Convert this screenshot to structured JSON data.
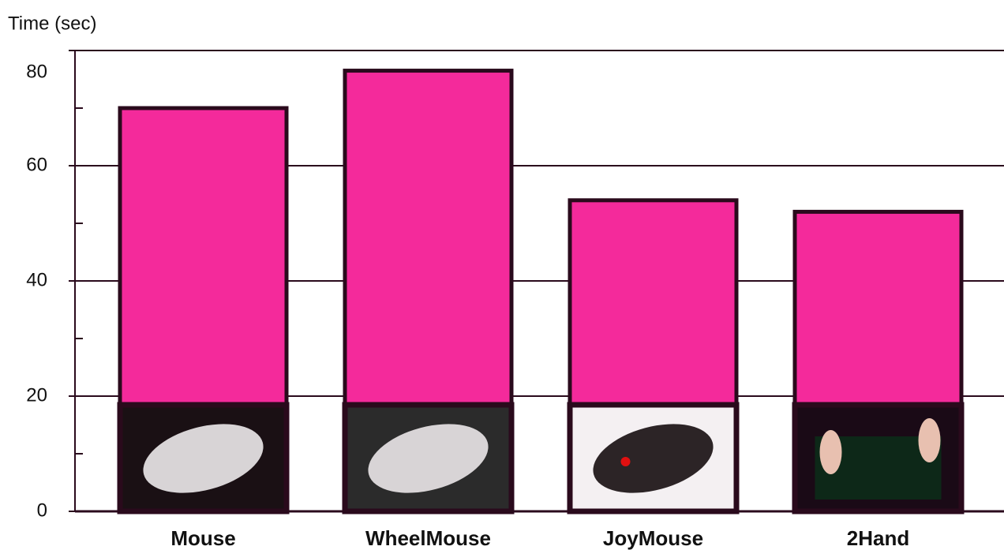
{
  "chart_data": {
    "type": "bar",
    "y_axis_label": "Time (sec)",
    "categories": [
      "Mouse",
      "WheelMouse",
      "JoyMouse",
      "2Hand"
    ],
    "values": [
      70,
      76.5,
      54,
      52
    ],
    "color": "#f42a9b",
    "ylim": [
      0,
      80
    ],
    "yticks": [
      0,
      20,
      40,
      60,
      80
    ],
    "minor_yticks": [
      10,
      30,
      50,
      70
    ],
    "grid": true
  }
}
